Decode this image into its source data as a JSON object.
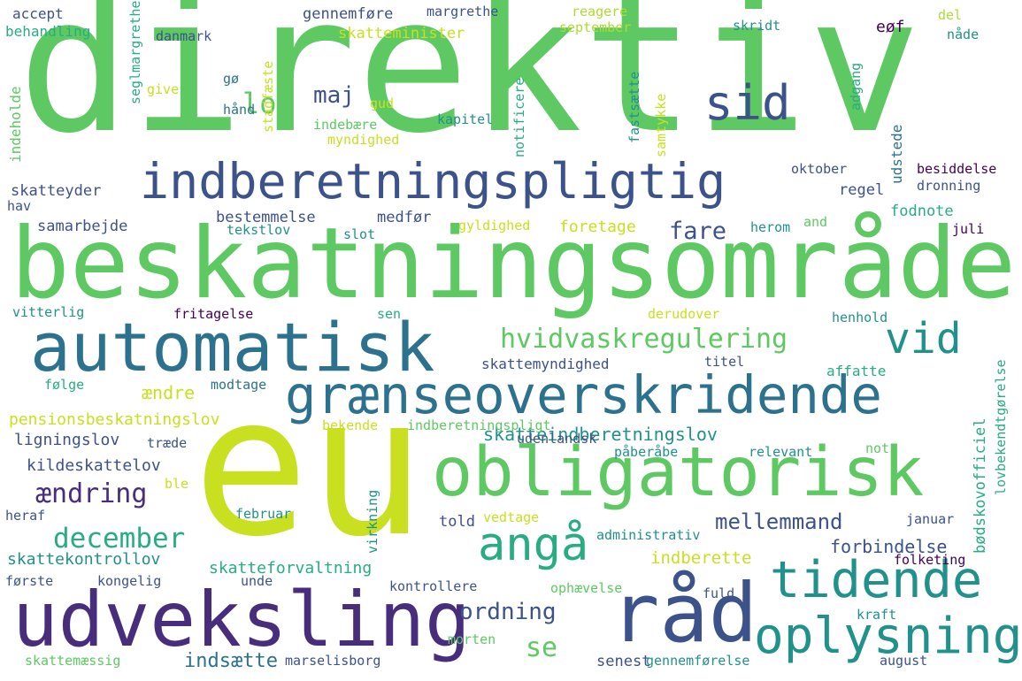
{
  "palette": [
    "#5ec962",
    "#3b528b",
    "#21918c",
    "#440154",
    "#c8e020",
    "#2c728e",
    "#27ad81",
    "#472d7b",
    "#addc30",
    "#8fd744"
  ],
  "words": [
    {
      "text": "direktiv",
      "color": "#5ec962"
    },
    {
      "text": "beskatningsområde",
      "color": "#5ec962"
    },
    {
      "text": "eu",
      "color": "#c8e020"
    },
    {
      "text": "indberetningspligtig",
      "color": "#3b528b"
    },
    {
      "text": "automatisk",
      "color": "#2c728e"
    },
    {
      "text": "grænseoverskridende",
      "color": "#2c728e"
    },
    {
      "text": "obligatorisk",
      "color": "#5ec962"
    },
    {
      "text": "udveksling",
      "color": "#472d7b"
    },
    {
      "text": "råd",
      "color": "#3b528b"
    },
    {
      "text": "tidende",
      "color": "#21918c"
    },
    {
      "text": "oplysning",
      "color": "#21918c"
    },
    {
      "text": "sid",
      "color": "#3b528b"
    },
    {
      "text": "vid",
      "color": "#21918c"
    },
    {
      "text": "angå",
      "color": "#27ad81"
    },
    {
      "text": "hvidvaskregulering",
      "color": "#5ec962"
    },
    {
      "text": "december",
      "color": "#27ad81"
    },
    {
      "text": "ændring",
      "color": "#472d7b"
    },
    {
      "text": "ordning",
      "color": "#3b528b"
    },
    {
      "text": "mellemmand",
      "color": "#3b528b"
    },
    {
      "text": "lov",
      "color": "#5ec962"
    },
    {
      "text": "maj",
      "color": "#3b528b"
    },
    {
      "text": "se",
      "color": "#5ec962"
    },
    {
      "text": "fare",
      "color": "#3b528b"
    },
    {
      "text": "skatteindberetningslov",
      "color": "#21918c"
    },
    {
      "text": "skattekontrollov",
      "color": "#21918c"
    },
    {
      "text": "skatteforvaltning",
      "color": "#27ad81"
    },
    {
      "text": "indsætte",
      "color": "#2c728e"
    },
    {
      "text": "forbindelse",
      "color": "#3b528b"
    },
    {
      "text": "indberette",
      "color": "#c8e020"
    },
    {
      "text": "accept",
      "color": "#3b528b"
    },
    {
      "text": "behandling",
      "color": "#27ad81"
    },
    {
      "text": "danmark",
      "color": "#3b528b"
    },
    {
      "text": "gennemføre",
      "color": "#3b528b"
    },
    {
      "text": "margrethe",
      "color": "#3b528b"
    },
    {
      "text": "reagere",
      "color": "#addc30"
    },
    {
      "text": "september",
      "color": "#addc30"
    },
    {
      "text": "skridt",
      "color": "#21918c"
    },
    {
      "text": "eøf",
      "color": "#440154"
    },
    {
      "text": "del",
      "color": "#addc30"
    },
    {
      "text": "nåde",
      "color": "#21918c"
    },
    {
      "text": "skatteminister",
      "color": "#c8e020"
    },
    {
      "text": "seglmargrethe",
      "color": "#27ad81"
    },
    {
      "text": "stadfæste",
      "color": "#c8e020"
    },
    {
      "text": "notificere",
      "color": "#27ad81"
    },
    {
      "text": "fastsætte",
      "color": "#21918c"
    },
    {
      "text": "samtykke",
      "color": "#c8e020"
    },
    {
      "text": "adgang",
      "color": "#27ad81"
    },
    {
      "text": "udstede",
      "color": "#2c728e"
    },
    {
      "text": "indeholde",
      "color": "#5ec962"
    },
    {
      "text": "give",
      "color": "#c8e020"
    },
    {
      "text": "gø",
      "color": "#2c728e"
    },
    {
      "text": "hånd",
      "color": "#2c728e"
    },
    {
      "text": "gud",
      "color": "#c8e020"
    },
    {
      "text": "indebære",
      "color": "#5ec962"
    },
    {
      "text": "myndighed",
      "color": "#c8e020"
    },
    {
      "text": "kapitel",
      "color": "#21918c"
    },
    {
      "text": "oktober",
      "color": "#3b528b"
    },
    {
      "text": "besiddelse",
      "color": "#440154"
    },
    {
      "text": "dronning",
      "color": "#3b528b"
    },
    {
      "text": "regel",
      "color": "#3b528b"
    },
    {
      "text": "skatteyder",
      "color": "#3b528b"
    },
    {
      "text": "hav",
      "color": "#3b528b"
    },
    {
      "text": "bestemmelse",
      "color": "#3b528b"
    },
    {
      "text": "medfør",
      "color": "#3b528b"
    },
    {
      "text": "gyldighed",
      "color": "#c8e020"
    },
    {
      "text": "foretage",
      "color": "#c8e020"
    },
    {
      "text": "fodnote",
      "color": "#27ad81"
    },
    {
      "text": "samarbejde",
      "color": "#3b528b"
    },
    {
      "text": "tekstlov",
      "color": "#21918c"
    },
    {
      "text": "slot",
      "color": "#21918c"
    },
    {
      "text": "herom",
      "color": "#21918c"
    },
    {
      "text": "and",
      "color": "#5ec962"
    },
    {
      "text": "juli",
      "color": "#440154"
    },
    {
      "text": "vitterlig",
      "color": "#21918c"
    },
    {
      "text": "fritagelse",
      "color": "#440154"
    },
    {
      "text": "sen",
      "color": "#27ad81"
    },
    {
      "text": "derudover",
      "color": "#c8e020"
    },
    {
      "text": "henhold",
      "color": "#21918c"
    },
    {
      "text": "skattemyndighed",
      "color": "#3b528b"
    },
    {
      "text": "titel",
      "color": "#3b528b"
    },
    {
      "text": "affatte",
      "color": "#27ad81"
    },
    {
      "text": "følge",
      "color": "#27ad81"
    },
    {
      "text": "ændre",
      "color": "#c8e020"
    },
    {
      "text": "modtage",
      "color": "#2c728e"
    },
    {
      "text": "pensionsbeskatningslov",
      "color": "#c8e020"
    },
    {
      "text": "bekende",
      "color": "#c8e020"
    },
    {
      "text": "indberetningspligt",
      "color": "#5ec962"
    },
    {
      "text": "ligningslov",
      "color": "#3b528b"
    },
    {
      "text": "træde",
      "color": "#3b528b"
    },
    {
      "text": "udenlandsk",
      "color": "#3b528b"
    },
    {
      "text": "kildeskattelov",
      "color": "#3b528b"
    },
    {
      "text": "påberåbe",
      "color": "#21918c"
    },
    {
      "text": "relevant",
      "color": "#21918c"
    },
    {
      "text": "not",
      "color": "#5ec962"
    },
    {
      "text": "ble",
      "color": "#c8e020"
    },
    {
      "text": "virkning",
      "color": "#21918c"
    },
    {
      "text": "lovbekendtgørelse",
      "color": "#27ad81"
    },
    {
      "text": "bødskovofficiel",
      "color": "#27ad81"
    },
    {
      "text": "heraf",
      "color": "#3b528b"
    },
    {
      "text": "februar",
      "color": "#21918c"
    },
    {
      "text": "vedtage",
      "color": "#c8e020"
    },
    {
      "text": "told",
      "color": "#3b528b"
    },
    {
      "text": "januar",
      "color": "#3b528b"
    },
    {
      "text": "administrativ",
      "color": "#21918c"
    },
    {
      "text": "folketing",
      "color": "#440154"
    },
    {
      "text": "første",
      "color": "#3b528b"
    },
    {
      "text": "kongelig",
      "color": "#3b528b"
    },
    {
      "text": "unde",
      "color": "#3b528b"
    },
    {
      "text": "kontrollere",
      "color": "#3b528b"
    },
    {
      "text": "ophævelse",
      "color": "#5ec962"
    },
    {
      "text": "fuld",
      "color": "#3b528b"
    },
    {
      "text": "kraft",
      "color": "#21918c"
    },
    {
      "text": "morten",
      "color": "#5ec962"
    },
    {
      "text": "skattemæssig",
      "color": "#5ec962"
    },
    {
      "text": "marselisborg",
      "color": "#3b528b"
    },
    {
      "text": "senest",
      "color": "#3b528b"
    },
    {
      "text": "gennemførelse",
      "color": "#21918c"
    },
    {
      "text": "august",
      "color": "#3b528b"
    }
  ]
}
